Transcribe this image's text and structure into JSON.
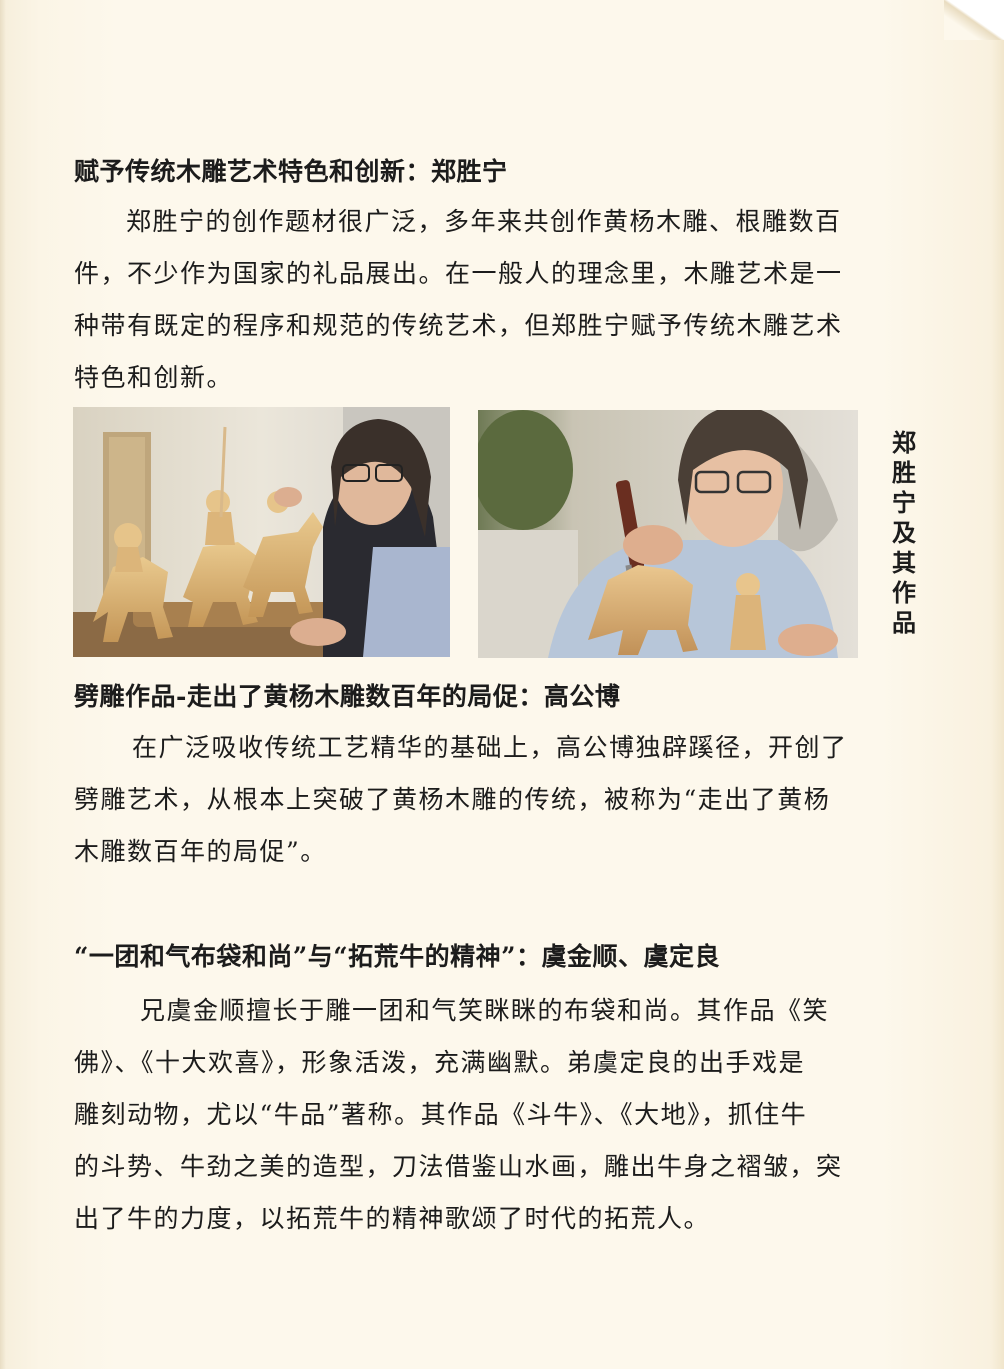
{
  "section1": {
    "heading": "赋予传统木雕艺术特色和创新：郑胜宁",
    "para_lines": [
      "郑胜宁的创作题材很广泛，多年来共创作黄杨木雕、根雕数百",
      "件，不少作为国家的礼品展出。在一般人的理念里，木雕艺术是一",
      "种带有既定的程序和规范的传统艺术，但郑胜宁赋予传统木雕艺术",
      "特色和创新。"
    ]
  },
  "photos": {
    "caption": "郑胜宁及其作品"
  },
  "section2": {
    "heading": "劈雕作品-走出了黄杨木雕数百年的局促：高公博",
    "para_lines": [
      "在广泛吸收传统工艺精华的基础上，高公博独辟蹊径，开创了",
      "劈雕艺术，从根本上突破了黄杨木雕的传统，被称为“走出了黄杨",
      "木雕数百年的局促”。"
    ]
  },
  "section3": {
    "heading": "“一团和气布袋和尚”与“拓荒牛的精神”：虞金顺、虞定良",
    "para_lines": [
      "兄虞金顺擅长于雕一团和气笑眯眯的布袋和尚。其作品《笑",
      "佛》、《十大欢喜》，形象活泼，充满幽默。弟虞定良的出手戏是",
      "雕刻动物，尤以“牛品”著称。其作品《斗牛》、《大地》，抓住牛",
      "的斗势、牛劲之美的造型，刀法借鉴山水画，雕出牛身之褶皱，突",
      "出了牛的力度，以拓荒牛的精神歌颂了时代的拓荒人。"
    ]
  }
}
